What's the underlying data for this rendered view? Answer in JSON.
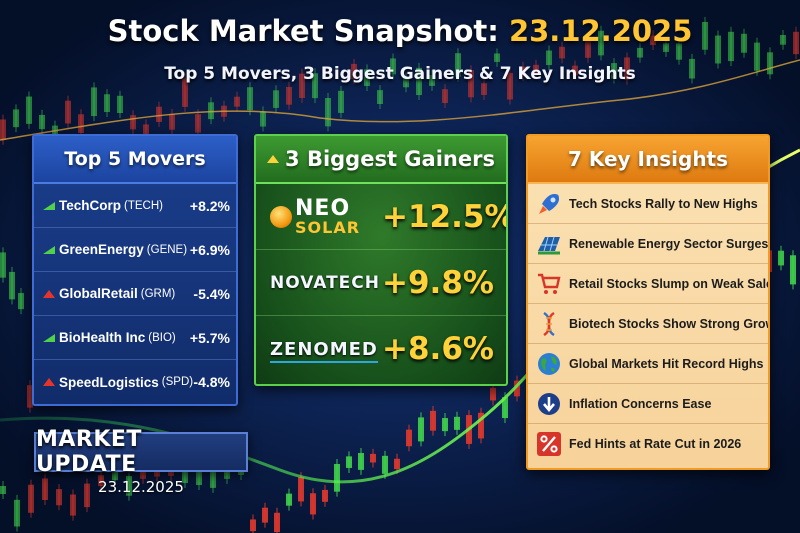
{
  "header": {
    "title": "Stock Market Snapshot:",
    "title_date": "23.12.2025",
    "subtitle": "Top 5 Movers, 3 Biggest Gainers & 7 Key Insights"
  },
  "movers": {
    "heading": "Top 5 Movers",
    "items": [
      {
        "name": "TechCorp",
        "ticker": "(TECH)",
        "change": "+8.2%",
        "direction": "up"
      },
      {
        "name": "GreenEnergy",
        "ticker": "(GENE)",
        "change": "+6.9%",
        "direction": "up"
      },
      {
        "name": "GlobalRetail",
        "ticker": "(GRM)",
        "change": "-5.4%",
        "direction": "down"
      },
      {
        "name": "BioHealth Inc",
        "ticker": "(BIO)",
        "change": "+5.7%",
        "direction": "up"
      },
      {
        "name": "SpeedLogistics",
        "ticker": "(SPD)",
        "change": "-4.8%",
        "direction": "down"
      }
    ]
  },
  "gainers": {
    "heading": "3 Biggest Gainers",
    "items": [
      {
        "logo_line1": "NEO",
        "logo_line2": "SOLAR",
        "change": "+12.5%"
      },
      {
        "logo": "NOVATECH",
        "change": "+9.8%"
      },
      {
        "logo": "ZENOMED",
        "change": "+8.6%"
      }
    ]
  },
  "insights": {
    "heading": "7 Key Insights",
    "items": [
      {
        "icon": "rocket-icon",
        "text": "Tech Stocks Rally to New Highs"
      },
      {
        "icon": "solar-panel-icon",
        "text": "Renewable Energy Sector Surges"
      },
      {
        "icon": "shopping-cart-icon",
        "text": "Retail Stocks Slump on Weak Sales"
      },
      {
        "icon": "dna-icon",
        "text": "Biotech Stocks Show Strong Growth"
      },
      {
        "icon": "globe-icon",
        "text": "Global Markets Hit Record Highs"
      },
      {
        "icon": "down-arrow-icon",
        "text": "Inflation Concerns Ease"
      },
      {
        "icon": "percent-icon",
        "text": "Fed Hints at Rate Cut in 2026"
      }
    ]
  },
  "update": {
    "label": "MARKET UPDATE",
    "date": "23.12.2025"
  },
  "colors": {
    "up": "#4fd14a",
    "down": "#e5352b",
    "accent": "#ffc533",
    "background": "#061633"
  }
}
